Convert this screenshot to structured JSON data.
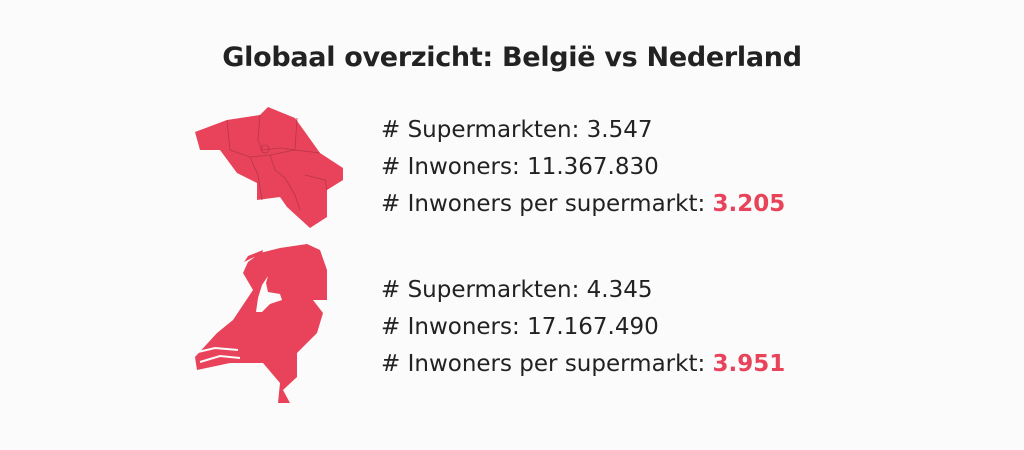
{
  "title": "Globaal overzicht: België vs Nederland",
  "accent_color": "#e8435a",
  "belgium": {
    "map_icon": "belgium-map",
    "supermarkets_label": "# Supermarkten: ",
    "supermarkets": "3.547",
    "inhabitants_label": "# Inwoners: ",
    "inhabitants": "11.367.830",
    "per_supermarket_label": "# Inwoners per supermarkt: ",
    "per_supermarket": "3.205"
  },
  "netherlands": {
    "map_icon": "netherlands-map",
    "supermarkets_label": "# Supermarkten: ",
    "supermarkets": "4.345",
    "inhabitants_label": "# Inwoners: ",
    "inhabitants": "17.167.490",
    "per_supermarket_label": "# Inwoners per supermarkt: ",
    "per_supermarket": "3.951"
  }
}
